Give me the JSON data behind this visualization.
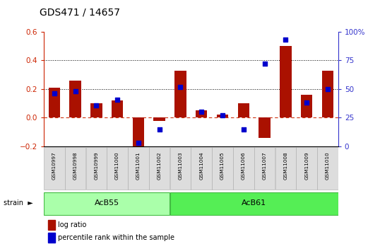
{
  "title": "GDS471 / 14657",
  "samples": [
    "GSM10997",
    "GSM10998",
    "GSM10999",
    "GSM11000",
    "GSM11001",
    "GSM11002",
    "GSM11003",
    "GSM11004",
    "GSM11005",
    "GSM11006",
    "GSM11007",
    "GSM11008",
    "GSM11009",
    "GSM11010"
  ],
  "log_ratio": [
    0.21,
    0.26,
    0.1,
    0.12,
    -0.25,
    -0.02,
    0.33,
    0.05,
    0.02,
    0.1,
    -0.14,
    0.5,
    0.16,
    0.33
  ],
  "percentile": [
    46,
    48,
    36,
    41,
    3,
    15,
    52,
    30,
    27,
    15,
    72,
    93,
    38,
    50
  ],
  "groups": [
    {
      "label": "AcB55",
      "start": 0,
      "end": 5,
      "color": "#aaffaa"
    },
    {
      "label": "AcB61",
      "start": 6,
      "end": 13,
      "color": "#55ee55"
    }
  ],
  "ylim_left": [
    -0.2,
    0.6
  ],
  "ylim_right": [
    0,
    100
  ],
  "yticks_left": [
    -0.2,
    0.0,
    0.2,
    0.4,
    0.6
  ],
  "yticks_right": [
    0,
    25,
    50,
    75,
    100
  ],
  "ytick_labels_right": [
    "0",
    "25",
    "50",
    "75",
    "100%"
  ],
  "hlines": [
    0.2,
    0.4
  ],
  "bar_color": "#aa1100",
  "scatter_color": "#0000cc",
  "zero_line_color": "#cc3311",
  "dotted_line_color": "#000000",
  "plot_bg_color": "#ffffff",
  "label_log_ratio": "log ratio",
  "label_percentile": "percentile rank within the sample",
  "left_tick_color": "#cc2200",
  "right_tick_color": "#3333cc",
  "bar_width": 0.55
}
